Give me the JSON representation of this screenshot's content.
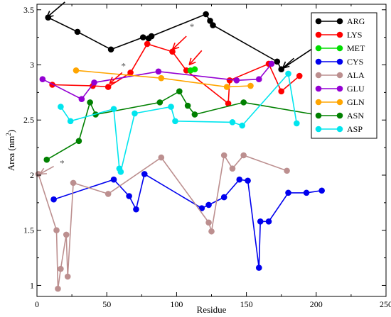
{
  "chart_data": {
    "type": "line",
    "title": "",
    "xlabel": "Residue",
    "ylabel_main": "Area (nm",
    "ylabel_sup": "2",
    "ylabel_close": ")",
    "xlim": [
      0,
      250
    ],
    "ylim": [
      0.9,
      3.55
    ],
    "x_ticks": [
      0,
      50,
      100,
      150,
      200,
      250
    ],
    "x_tick_labels": [
      "0",
      "50",
      "100",
      "150",
      "200",
      "250"
    ],
    "y_ticks": [
      1,
      1.5,
      2,
      2.5,
      3,
      3.5
    ],
    "y_tick_labels": [
      "1",
      "1.5",
      "2",
      "2.5",
      "3",
      "3.5"
    ],
    "legend_position": "top-right",
    "series": [
      {
        "name": "ARG",
        "color": "#000000",
        "points": [
          [
            8,
            3.43
          ],
          [
            29,
            3.3
          ],
          [
            53,
            3.14
          ],
          [
            76,
            3.25
          ],
          [
            80,
            3.24
          ],
          [
            82,
            3.26
          ],
          [
            121,
            3.46
          ],
          [
            124,
            3.4
          ],
          [
            126,
            3.36
          ],
          [
            172,
            3.03
          ],
          [
            175,
            2.96
          ],
          [
            200,
            3.17
          ]
        ]
      },
      {
        "name": "LYS",
        "color": "#ff0000",
        "points": [
          [
            11,
            2.82
          ],
          [
            40,
            2.81
          ],
          [
            51,
            2.8
          ],
          [
            67,
            2.93
          ],
          [
            79,
            3.19
          ],
          [
            97,
            3.12
          ],
          [
            107,
            2.95
          ],
          [
            137,
            2.65
          ],
          [
            138,
            2.86
          ],
          [
            166,
            3.01
          ],
          [
            175,
            2.76
          ],
          [
            188,
            2.9
          ]
        ]
      },
      {
        "name": "MET",
        "color": "#00dd00",
        "points": [
          [
            110,
            2.95
          ],
          [
            113,
            2.96
          ]
        ]
      },
      {
        "name": "CYS",
        "color": "#0000ee",
        "points": [
          [
            12,
            1.78
          ],
          [
            55,
            1.96
          ],
          [
            66,
            1.81
          ],
          [
            71,
            1.69
          ],
          [
            77,
            2.01
          ],
          [
            118,
            1.7
          ],
          [
            123,
            1.73
          ],
          [
            134,
            1.8
          ],
          [
            145,
            1.96
          ],
          [
            151,
            1.95
          ],
          [
            159,
            1.16
          ],
          [
            160,
            1.58
          ],
          [
            166,
            1.58
          ],
          [
            180,
            1.84
          ],
          [
            193,
            1.84
          ],
          [
            204,
            1.86
          ]
        ]
      },
      {
        "name": "ALA",
        "color": "#bc8f8f",
        "points": [
          [
            1,
            2.01
          ],
          [
            14,
            1.5
          ],
          [
            15,
            0.97
          ],
          [
            17,
            1.15
          ],
          [
            21,
            1.46
          ],
          [
            22,
            1.08
          ],
          [
            26,
            1.93
          ],
          [
            51,
            1.83
          ],
          [
            89,
            2.16
          ],
          [
            123,
            1.57
          ],
          [
            125,
            1.49
          ],
          [
            134,
            2.18
          ],
          [
            140,
            2.06
          ],
          [
            148,
            2.18
          ],
          [
            179,
            2.04
          ]
        ]
      },
      {
        "name": "GLU",
        "color": "#9400d3",
        "points": [
          [
            4,
            2.87
          ],
          [
            32,
            2.69
          ],
          [
            41,
            2.84
          ],
          [
            87,
            2.94
          ],
          [
            143,
            2.86
          ],
          [
            159,
            2.87
          ],
          [
            168,
            3.01
          ]
        ]
      },
      {
        "name": "GLN",
        "color": "#ffa500",
        "points": [
          [
            28,
            2.95
          ],
          [
            89,
            2.88
          ],
          [
            136,
            2.8
          ],
          [
            153,
            2.81
          ]
        ]
      },
      {
        "name": "ASN",
        "color": "#008000",
        "points": [
          [
            7,
            2.14
          ],
          [
            30,
            2.31
          ],
          [
            38,
            2.66
          ],
          [
            42,
            2.55
          ],
          [
            88,
            2.66
          ],
          [
            102,
            2.76
          ],
          [
            108,
            2.63
          ],
          [
            113,
            2.55
          ],
          [
            148,
            2.66
          ],
          [
            199,
            2.55
          ]
        ]
      },
      {
        "name": "ASP",
        "color": "#00e5ee",
        "points": [
          [
            17,
            2.62
          ],
          [
            24,
            2.49
          ],
          [
            55,
            2.6
          ],
          [
            59,
            2.06
          ],
          [
            60,
            2.03
          ],
          [
            70,
            2.56
          ],
          [
            96,
            2.62
          ],
          [
            99,
            2.49
          ],
          [
            140,
            2.48
          ],
          [
            147,
            2.45
          ],
          [
            180,
            2.92
          ],
          [
            186,
            2.47
          ]
        ]
      }
    ],
    "annotations": {
      "stars": [
        {
          "text": "*",
          "x": 111,
          "y": 3.32
        },
        {
          "text": "*",
          "x": 62,
          "y": 2.96
        },
        {
          "text": "*",
          "x": 18,
          "y": 2.08
        }
      ],
      "arrows": [
        {
          "color": "#000000",
          "from": [
            20,
            3.57
          ],
          "to": [
            7,
            3.43
          ]
        },
        {
          "color": "#000000",
          "from": [
            184,
            3.06
          ],
          "to": [
            176,
            2.97
          ]
        },
        {
          "color": "#ff0000",
          "from": [
            107,
            3.26
          ],
          "to": [
            97,
            3.14
          ]
        },
        {
          "color": "#ff0000",
          "from": [
            61,
            2.93
          ],
          "to": [
            52,
            2.83
          ]
        },
        {
          "color": "#ff0000",
          "from": [
            118,
            3.13
          ],
          "to": [
            109,
            3.0
          ]
        },
        {
          "color": "#bc8f8f",
          "from": [
            12,
            2.08
          ],
          "to": [
            2,
            2.01
          ]
        }
      ]
    }
  }
}
